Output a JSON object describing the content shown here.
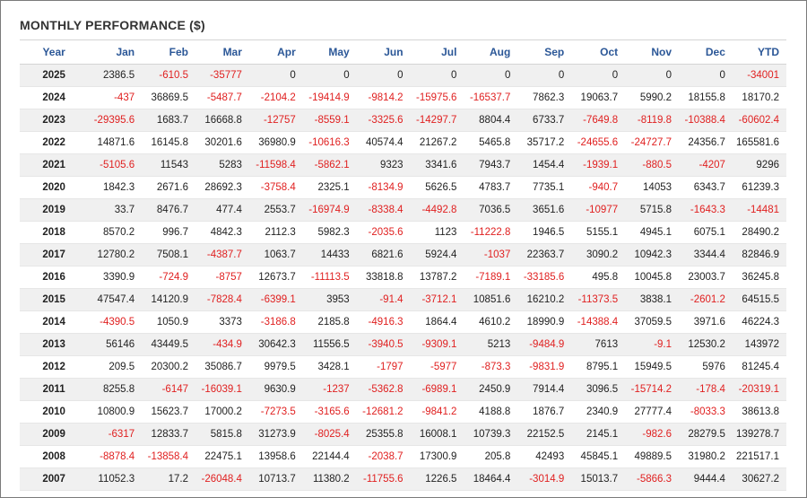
{
  "title": "MONTHLY PERFORMANCE ($)",
  "headers": [
    "Year",
    "Jan",
    "Feb",
    "Mar",
    "Apr",
    "May",
    "Jun",
    "Jul",
    "Aug",
    "Sep",
    "Oct",
    "Nov",
    "Dec",
    "YTD"
  ],
  "colors": {
    "negative": "#e02020",
    "header": "#2b5797"
  },
  "rows": [
    [
      "2025",
      "2386.5",
      "-610.5",
      "-35777",
      "0",
      "0",
      "0",
      "0",
      "0",
      "0",
      "0",
      "0",
      "0",
      "-34001"
    ],
    [
      "2024",
      "-437",
      "36869.5",
      "-5487.7",
      "-2104.2",
      "-19414.9",
      "-9814.2",
      "-15975.6",
      "-16537.7",
      "7862.3",
      "19063.7",
      "5990.2",
      "18155.8",
      "18170.2"
    ],
    [
      "2023",
      "-29395.6",
      "1683.7",
      "16668.8",
      "-12757",
      "-8559.1",
      "-3325.6",
      "-14297.7",
      "8804.4",
      "6733.7",
      "-7649.8",
      "-8119.8",
      "-10388.4",
      "-60602.4"
    ],
    [
      "2022",
      "14871.6",
      "16145.8",
      "30201.6",
      "36980.9",
      "-10616.3",
      "40574.4",
      "21267.2",
      "5465.8",
      "35717.2",
      "-24655.6",
      "-24727.7",
      "24356.7",
      "165581.6"
    ],
    [
      "2021",
      "-5105.6",
      "11543",
      "5283",
      "-11598.4",
      "-5862.1",
      "9323",
      "3341.6",
      "7943.7",
      "1454.4",
      "-1939.1",
      "-880.5",
      "-4207",
      "9296"
    ],
    [
      "2020",
      "1842.3",
      "2671.6",
      "28692.3",
      "-3758.4",
      "2325.1",
      "-8134.9",
      "5626.5",
      "4783.7",
      "7735.1",
      "-940.7",
      "14053",
      "6343.7",
      "61239.3"
    ],
    [
      "2019",
      "33.7",
      "8476.7",
      "477.4",
      "2553.7",
      "-16974.9",
      "-8338.4",
      "-4492.8",
      "7036.5",
      "3651.6",
      "-10977",
      "5715.8",
      "-1643.3",
      "-14481"
    ],
    [
      "2018",
      "8570.2",
      "996.7",
      "4842.3",
      "2112.3",
      "5982.3",
      "-2035.6",
      "1123",
      "-11222.8",
      "1946.5",
      "5155.1",
      "4945.1",
      "6075.1",
      "28490.2"
    ],
    [
      "2017",
      "12780.2",
      "7508.1",
      "-4387.7",
      "1063.7",
      "14433",
      "6821.6",
      "5924.4",
      "-1037",
      "22363.7",
      "3090.2",
      "10942.3",
      "3344.4",
      "82846.9"
    ],
    [
      "2016",
      "3390.9",
      "-724.9",
      "-8757",
      "12673.7",
      "-11113.5",
      "33818.8",
      "13787.2",
      "-7189.1",
      "-33185.6",
      "495.8",
      "10045.8",
      "23003.7",
      "36245.8"
    ],
    [
      "2015",
      "47547.4",
      "14120.9",
      "-7828.4",
      "-6399.1",
      "3953",
      "-91.4",
      "-3712.1",
      "10851.6",
      "16210.2",
      "-11373.5",
      "3838.1",
      "-2601.2",
      "64515.5"
    ],
    [
      "2014",
      "-4390.5",
      "1050.9",
      "3373",
      "-3186.8",
      "2185.8",
      "-4916.3",
      "1864.4",
      "4610.2",
      "18990.9",
      "-14388.4",
      "37059.5",
      "3971.6",
      "46224.3"
    ],
    [
      "2013",
      "56146",
      "43449.5",
      "-434.9",
      "30642.3",
      "11556.5",
      "-3940.5",
      "-9309.1",
      "5213",
      "-9484.9",
      "7613",
      "-9.1",
      "12530.2",
      "143972"
    ],
    [
      "2012",
      "209.5",
      "20300.2",
      "35086.7",
      "9979.5",
      "3428.1",
      "-1797",
      "-5977",
      "-873.3",
      "-9831.9",
      "8795.1",
      "15949.5",
      "5976",
      "81245.4"
    ],
    [
      "2011",
      "8255.8",
      "-6147",
      "-16039.1",
      "9630.9",
      "-1237",
      "-5362.8",
      "-6989.1",
      "2450.9",
      "7914.4",
      "3096.5",
      "-15714.2",
      "-178.4",
      "-20319.1"
    ],
    [
      "2010",
      "10800.9",
      "15623.7",
      "17000.2",
      "-7273.5",
      "-3165.6",
      "-12681.2",
      "-9841.2",
      "4188.8",
      "1876.7",
      "2340.9",
      "27777.4",
      "-8033.3",
      "38613.8"
    ],
    [
      "2009",
      "-6317",
      "12833.7",
      "5815.8",
      "31273.9",
      "-8025.4",
      "25355.8",
      "16008.1",
      "10739.3",
      "22152.5",
      "2145.1",
      "-982.6",
      "28279.5",
      "139278.7"
    ],
    [
      "2008",
      "-8878.4",
      "-13858.4",
      "22475.1",
      "13958.6",
      "22144.4",
      "-2038.7",
      "17300.9",
      "205.8",
      "42493",
      "45845.1",
      "49889.5",
      "31980.2",
      "221517.1"
    ],
    [
      "2007",
      "11052.3",
      "17.2",
      "-26048.4",
      "10713.7",
      "11380.2",
      "-11755.6",
      "1226.5",
      "18464.4",
      "-3014.9",
      "15013.7",
      "-5866.3",
      "9444.4",
      "30627.2"
    ]
  ]
}
